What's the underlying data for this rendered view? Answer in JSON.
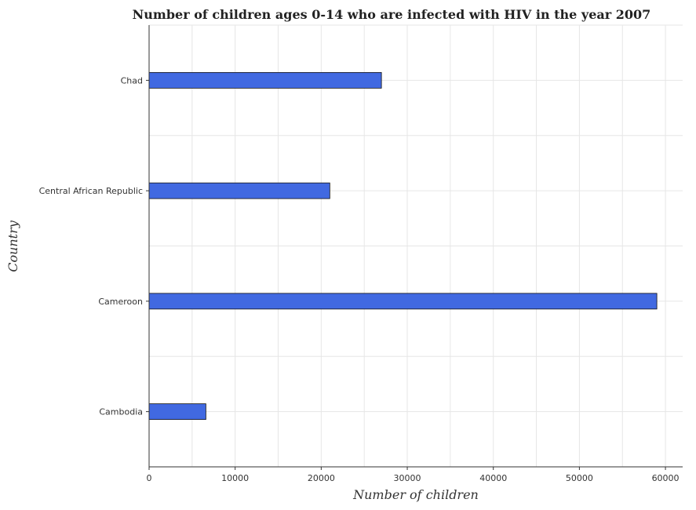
{
  "chart_data": {
    "type": "bar",
    "orientation": "horizontal",
    "title": "Number of children ages 0-14 who are infected with HIV in the year 2007",
    "xlabel": "Number of children",
    "ylabel": "Country",
    "categories": [
      "Cambodia",
      "Cameroon",
      "Central African Republic",
      "Chad"
    ],
    "values": [
      6600,
      59000,
      21000,
      27000
    ],
    "xlim": [
      0,
      62000
    ],
    "xticks": [
      0,
      10000,
      20000,
      30000,
      40000,
      50000,
      60000
    ],
    "xtick_labels": [
      "0",
      "10000",
      "20000",
      "30000",
      "40000",
      "50000",
      "60000"
    ],
    "bar_color": "#4169e1",
    "grid": true,
    "legend": "none"
  }
}
